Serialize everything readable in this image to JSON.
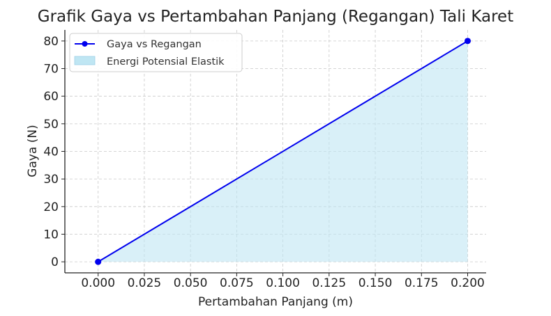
{
  "chart_data": {
    "type": "line",
    "title": "Grafik Gaya vs Pertambahan Panjang (Regangan) Tali Karet",
    "xlabel": "Pertambahan Panjang (m)",
    "ylabel": "Gaya (N)",
    "xlim": [
      -0.018,
      0.21
    ],
    "ylim": [
      -4,
      84
    ],
    "xticks": [
      "0.000",
      "0.025",
      "0.050",
      "0.075",
      "0.100",
      "0.125",
      "0.150",
      "0.175",
      "0.200"
    ],
    "yticks": [
      "0",
      "10",
      "20",
      "30",
      "40",
      "50",
      "60",
      "70",
      "80"
    ],
    "grid": true,
    "legend_position": "top-left",
    "series": [
      {
        "name": "Gaya vs Regangan",
        "x": [
          0.0,
          0.2
        ],
        "y": [
          0,
          80
        ],
        "color": "#0000ee",
        "marker": "circle"
      }
    ],
    "area": {
      "name": "Energi Potensial Elastik",
      "color": "#bfe6f3"
    }
  }
}
